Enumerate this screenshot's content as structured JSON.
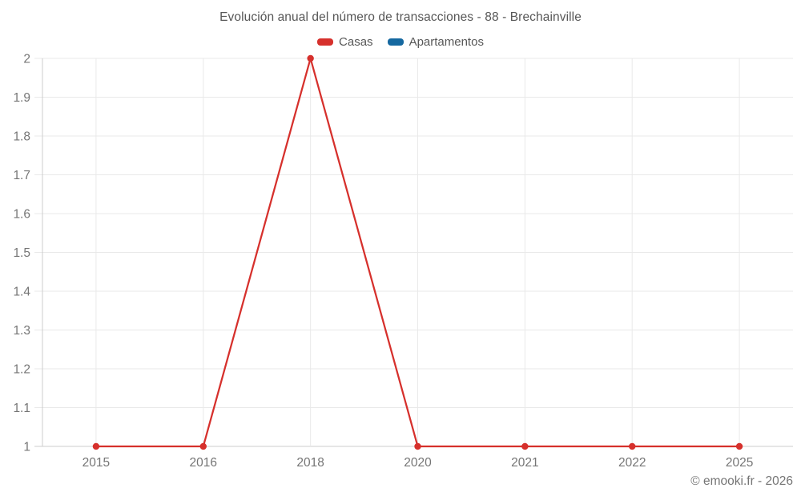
{
  "chart_data": {
    "type": "line",
    "title": "Evolución anual del número de transacciones - 88 - Brechainville",
    "xlabel": "",
    "ylabel": "",
    "categories": [
      "2015",
      "2016",
      "2018",
      "2020",
      "2021",
      "2022",
      "2025"
    ],
    "series": [
      {
        "name": "Casas",
        "color": "#d6302c",
        "values": [
          1,
          1,
          2,
          1,
          1,
          1,
          1
        ]
      },
      {
        "name": "Apartamentos",
        "color": "#1568a0",
        "values": [
          null,
          null,
          null,
          null,
          null,
          null,
          null
        ]
      }
    ],
    "ylim": [
      1,
      2
    ],
    "y_ticks": [
      {
        "v": 1.0,
        "label": "1"
      },
      {
        "v": 1.1,
        "label": "1.1"
      },
      {
        "v": 1.2,
        "label": "1.2"
      },
      {
        "v": 1.3,
        "label": "1.3"
      },
      {
        "v": 1.4,
        "label": "1.4"
      },
      {
        "v": 1.5,
        "label": "1.5"
      },
      {
        "v": 1.6,
        "label": "1.6"
      },
      {
        "v": 1.7,
        "label": "1.7"
      },
      {
        "v": 1.8,
        "label": "1.8"
      },
      {
        "v": 1.9,
        "label": "1.9"
      },
      {
        "v": 2.0,
        "label": "2"
      }
    ],
    "grid": true,
    "legend_position": "top"
  },
  "footer": {
    "copyright": "© emooki.fr - 2026"
  },
  "colors": {
    "grid_line": "#e9e9e9",
    "axis_line": "#cccccc",
    "tick_text": "#757575",
    "title_text": "#575757"
  }
}
